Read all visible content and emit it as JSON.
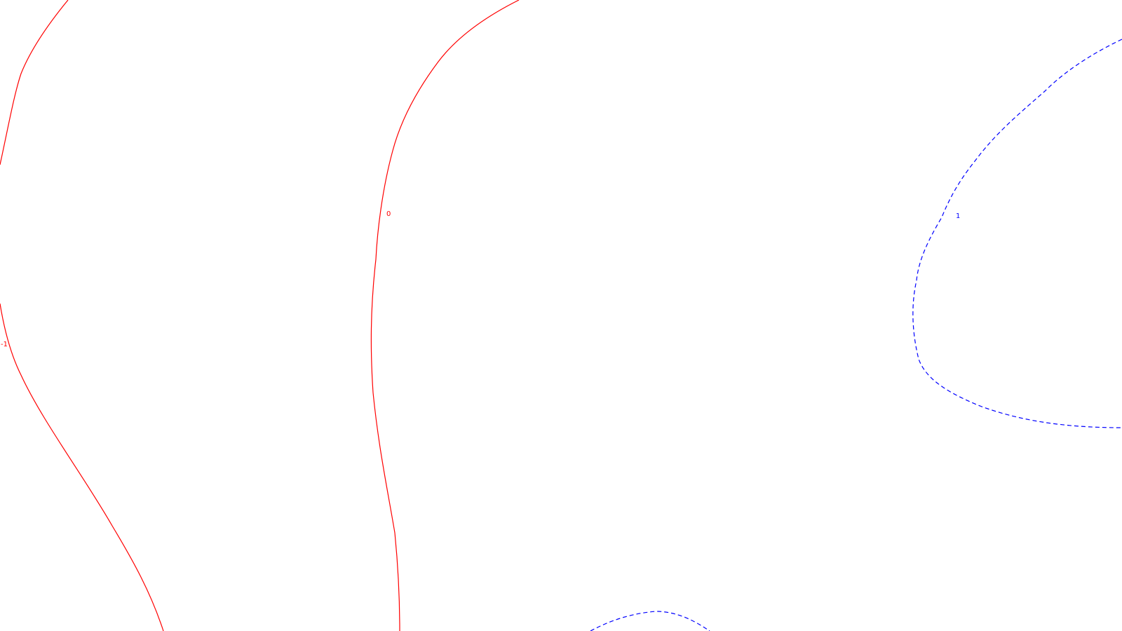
{
  "chart_data": {
    "type": "contour",
    "title": "",
    "xlabel": "",
    "ylabel": "",
    "grid": false,
    "legend": "none",
    "colors": {
      "negative_or_zero": "#ff0000",
      "positive": "#0000ff"
    },
    "levels": [
      {
        "value": -1,
        "label": "-1",
        "style": "solid",
        "color": "#ff0000"
      },
      {
        "value": 0,
        "label": "0",
        "style": "solid",
        "color": "#ff0000"
      },
      {
        "value": 1,
        "label": "1",
        "style": "dashed",
        "color": "#0000ff"
      }
    ]
  }
}
